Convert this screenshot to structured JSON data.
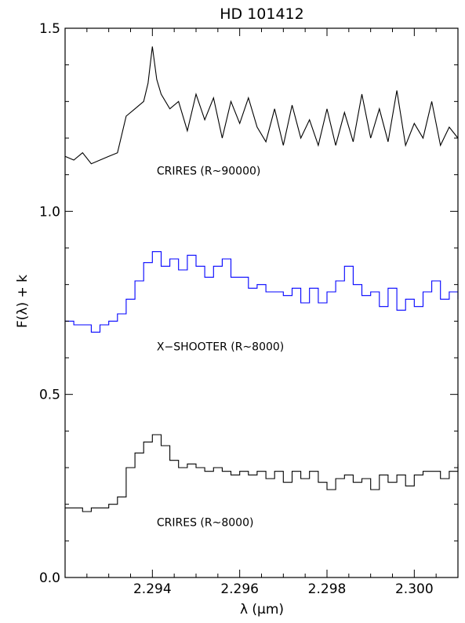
{
  "chart_data": {
    "type": "line",
    "title": "HD 101412",
    "xlabel": "λ (μm)",
    "ylabel": "F(λ) + k",
    "xlim": [
      2.292,
      2.301
    ],
    "ylim": [
      0.0,
      1.5
    ],
    "grid": false,
    "legend": "none",
    "x_ticks": [
      2.294,
      2.296,
      2.298,
      2.3
    ],
    "x_tick_labels": [
      "2.294",
      "2.296",
      "2.298",
      "2.300"
    ],
    "y_ticks": [
      0.0,
      0.5,
      1.0,
      1.5
    ],
    "y_tick_labels": [
      "0.0",
      "0.5",
      "1.0",
      "1.5"
    ],
    "annotations": [
      {
        "text": "CRIRES (R~90000)",
        "x": 2.2941,
        "y": 1.1
      },
      {
        "text": "X−SHOOTER (R~8000)",
        "x": 2.2941,
        "y": 0.62
      },
      {
        "text": "CRIRES (R~8000)",
        "x": 2.2941,
        "y": 0.14
      }
    ],
    "series": [
      {
        "color": "#000000",
        "step": false,
        "x": [
          2.292,
          2.2922,
          2.2924,
          2.2926,
          2.2928,
          2.293,
          2.2932,
          2.2934,
          2.2936,
          2.2938,
          2.2939,
          2.294,
          2.2941,
          2.2942,
          2.2944,
          2.2946,
          2.2948,
          2.295,
          2.2952,
          2.2954,
          2.2956,
          2.2958,
          2.296,
          2.2962,
          2.2964,
          2.2966,
          2.2968,
          2.297,
          2.2972,
          2.2974,
          2.2976,
          2.2978,
          2.298,
          2.2982,
          2.2984,
          2.2986,
          2.2988,
          2.299,
          2.2992,
          2.2994,
          2.2996,
          2.2998,
          2.3,
          2.3002,
          2.3004,
          2.3006,
          2.3008,
          2.301
        ],
        "y": [
          1.15,
          1.14,
          1.16,
          1.13,
          1.14,
          1.15,
          1.16,
          1.26,
          1.28,
          1.3,
          1.35,
          1.45,
          1.36,
          1.32,
          1.28,
          1.3,
          1.22,
          1.32,
          1.25,
          1.31,
          1.2,
          1.3,
          1.24,
          1.31,
          1.23,
          1.19,
          1.28,
          1.18,
          1.29,
          1.2,
          1.25,
          1.18,
          1.28,
          1.18,
          1.27,
          1.19,
          1.32,
          1.2,
          1.28,
          1.19,
          1.33,
          1.18,
          1.24,
          1.2,
          1.3,
          1.18,
          1.23,
          1.2
        ]
      },
      {
        "color": "#0000ff",
        "step": true,
        "x": [
          2.292,
          2.2922,
          2.2924,
          2.2926,
          2.2928,
          2.293,
          2.2932,
          2.2934,
          2.2936,
          2.2938,
          2.294,
          2.2942,
          2.2944,
          2.2946,
          2.2948,
          2.295,
          2.2952,
          2.2954,
          2.2956,
          2.2958,
          2.296,
          2.2962,
          2.2964,
          2.2966,
          2.2968,
          2.297,
          2.2972,
          2.2974,
          2.2976,
          2.2978,
          2.298,
          2.2982,
          2.2984,
          2.2986,
          2.2988,
          2.299,
          2.2992,
          2.2994,
          2.2996,
          2.2998,
          2.3,
          2.3002,
          2.3004,
          2.3006,
          2.3008,
          2.301
        ],
        "y": [
          0.7,
          0.69,
          0.69,
          0.67,
          0.69,
          0.7,
          0.72,
          0.76,
          0.81,
          0.86,
          0.89,
          0.85,
          0.87,
          0.84,
          0.88,
          0.85,
          0.82,
          0.85,
          0.87,
          0.82,
          0.82,
          0.79,
          0.8,
          0.78,
          0.78,
          0.77,
          0.79,
          0.75,
          0.79,
          0.75,
          0.78,
          0.81,
          0.85,
          0.8,
          0.77,
          0.78,
          0.74,
          0.79,
          0.73,
          0.76,
          0.74,
          0.78,
          0.81,
          0.76,
          0.78,
          0.76
        ]
      },
      {
        "color": "#000000",
        "step": true,
        "x": [
          2.292,
          2.2922,
          2.2924,
          2.2926,
          2.2928,
          2.293,
          2.2932,
          2.2934,
          2.2936,
          2.2938,
          2.294,
          2.2942,
          2.2944,
          2.2946,
          2.2948,
          2.295,
          2.2952,
          2.2954,
          2.2956,
          2.2958,
          2.296,
          2.2962,
          2.2964,
          2.2966,
          2.2968,
          2.297,
          2.2972,
          2.2974,
          2.2976,
          2.2978,
          2.298,
          2.2982,
          2.2984,
          2.2986,
          2.2988,
          2.299,
          2.2992,
          2.2994,
          2.2996,
          2.2998,
          2.3,
          2.3002,
          2.3004,
          2.3006,
          2.3008,
          2.301
        ],
        "y": [
          0.19,
          0.19,
          0.18,
          0.19,
          0.19,
          0.2,
          0.22,
          0.3,
          0.34,
          0.37,
          0.39,
          0.36,
          0.32,
          0.3,
          0.31,
          0.3,
          0.29,
          0.3,
          0.29,
          0.28,
          0.29,
          0.28,
          0.29,
          0.27,
          0.29,
          0.26,
          0.29,
          0.27,
          0.29,
          0.26,
          0.24,
          0.27,
          0.28,
          0.26,
          0.27,
          0.24,
          0.28,
          0.26,
          0.28,
          0.25,
          0.28,
          0.29,
          0.29,
          0.27,
          0.29,
          0.31
        ]
      }
    ]
  }
}
